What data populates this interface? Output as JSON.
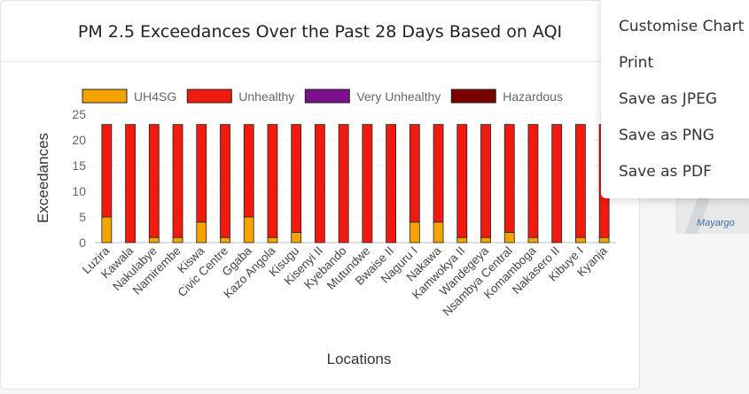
{
  "chart_data": {
    "type": "bar",
    "stacked": true,
    "title": "PM 2.5 Exceedances Over the Past 28 Days Based on AQI",
    "xlabel": "Locations",
    "ylabel": "Exceedances",
    "ylim": [
      0,
      25
    ],
    "yticks": [
      0,
      5,
      10,
      15,
      20,
      25
    ],
    "grid": true,
    "legend_position": "top",
    "categories": [
      "Luzira",
      "Kawala",
      "Nakulabye",
      "Namirembe",
      "Kiswa",
      "Civic Centre",
      "Ggaba",
      "Kazo Angola",
      "Kisugu",
      "Kisenyi II",
      "Kyebando",
      "Mutundwe",
      "Bwaise II",
      "Naguru I",
      "Nakawa",
      "Kamwokya II",
      "Wandegeya",
      "Nsambya Central",
      "Komamboga",
      "Nakasero II",
      "Kibuye I",
      "Kyanja"
    ],
    "series": [
      {
        "name": "UH4SG",
        "color": "#f5a300",
        "values": [
          5,
          0,
          1,
          1,
          4,
          1,
          5,
          1,
          2,
          0,
          0,
          0,
          0,
          4,
          4,
          1,
          1,
          2,
          1,
          0,
          1,
          1
        ]
      },
      {
        "name": "Unhealthy",
        "color": "#f01a0f",
        "values": [
          18,
          23,
          22,
          22,
          19,
          22,
          18,
          22,
          21,
          23,
          23,
          23,
          23,
          19,
          19,
          22,
          22,
          21,
          22,
          23,
          22,
          22
        ]
      },
      {
        "name": "Very Unhealthy",
        "color": "#7b0f8c",
        "values": [
          0,
          0,
          0,
          0,
          0,
          0,
          0,
          0,
          0,
          0,
          0,
          0,
          0,
          0,
          0,
          0,
          0,
          0,
          0,
          0,
          0,
          0
        ]
      },
      {
        "name": "Hazardous",
        "color": "#7a0000",
        "values": [
          0,
          0,
          0,
          0,
          0,
          0,
          0,
          0,
          0,
          0,
          0,
          0,
          0,
          0,
          0,
          0,
          0,
          0,
          0,
          0,
          0,
          0
        ]
      }
    ]
  },
  "menu": {
    "items": [
      "Customise Chart",
      "Print",
      "Save as JPEG",
      "Save as PNG",
      "Save as PDF"
    ]
  },
  "map": {
    "label": "Mayargo"
  }
}
